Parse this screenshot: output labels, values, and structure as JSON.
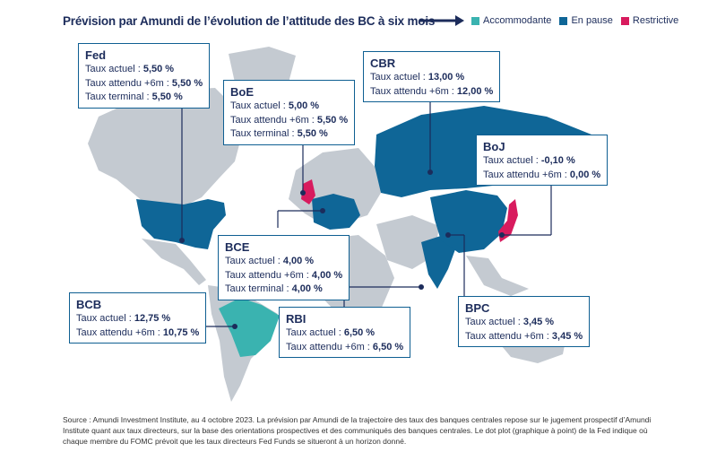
{
  "title": "Prévision par Amundi de l’évolution de l’attitude des BC à six mois",
  "legend": [
    {
      "label": "Accommodante",
      "color": "#3ab3b0"
    },
    {
      "label": "En pause",
      "color": "#0f6697"
    },
    {
      "label": "Restrictive",
      "color": "#d81b5e"
    }
  ],
  "banks": {
    "fed": {
      "name": "Fed",
      "rows": [
        {
          "label": "Taux actuel : ",
          "value": "5,50 %"
        },
        {
          "label": "Taux attendu +6m : ",
          "value": "5,50 %"
        },
        {
          "label": "Taux terminal : ",
          "value": "5,50 %"
        }
      ]
    },
    "boe": {
      "name": "BoE",
      "rows": [
        {
          "label": "Taux actuel : ",
          "value": "5,00 %"
        },
        {
          "label": "Taux attendu +6m : ",
          "value": "5,50 %"
        },
        {
          "label": "Taux terminal : ",
          "value": "5,50 %"
        }
      ]
    },
    "cbr": {
      "name": "CBR",
      "rows": [
        {
          "label": "Taux actuel : ",
          "value": "13,00 %"
        },
        {
          "label": "Taux attendu +6m : ",
          "value": "12,00 %"
        }
      ]
    },
    "boj": {
      "name": "BoJ",
      "rows": [
        {
          "label": "Taux actuel : ",
          "value": "-0,10 %"
        },
        {
          "label": "Taux attendu +6m : ",
          "value": "0,00 %"
        }
      ]
    },
    "bce": {
      "name": "BCE",
      "rows": [
        {
          "label": "Taux actuel : ",
          "value": "4,00 %"
        },
        {
          "label": "Taux attendu +6m : ",
          "value": "4,00 %"
        },
        {
          "label": "Taux terminal : ",
          "value": "4,00 %"
        }
      ]
    },
    "bcb": {
      "name": "BCB",
      "rows": [
        {
          "label": "Taux actuel : ",
          "value": "12,75 %"
        },
        {
          "label": "Taux attendu +6m : ",
          "value": "10,75 %"
        }
      ]
    },
    "rbi": {
      "name": "RBI",
      "rows": [
        {
          "label": "Taux actuel : ",
          "value": "6,50 %"
        },
        {
          "label": "Taux attendu +6m : ",
          "value": "6,50 %"
        }
      ]
    },
    "bpc": {
      "name": "BPC",
      "rows": [
        {
          "label": "Taux actuel : ",
          "value": "3,45 %"
        },
        {
          "label": "Taux attendu +6m : ",
          "value": "3,45 %"
        }
      ]
    }
  },
  "source": "Source : Amundi Investment Institute, au 4 octobre 2023. La prévision par Amundi de la trajectoire des taux des banques centrales repose sur le jugement prospectif d’Amundi Institute quant aux taux directeurs, sur la base des orientations prospectives et des communiqués des banques centrales. Le dot plot (graphique à point) de la Fed indique où chaque membre du FOMC prévoit que les taux directeurs Fed Funds se situeront à un horizon donné."
}
